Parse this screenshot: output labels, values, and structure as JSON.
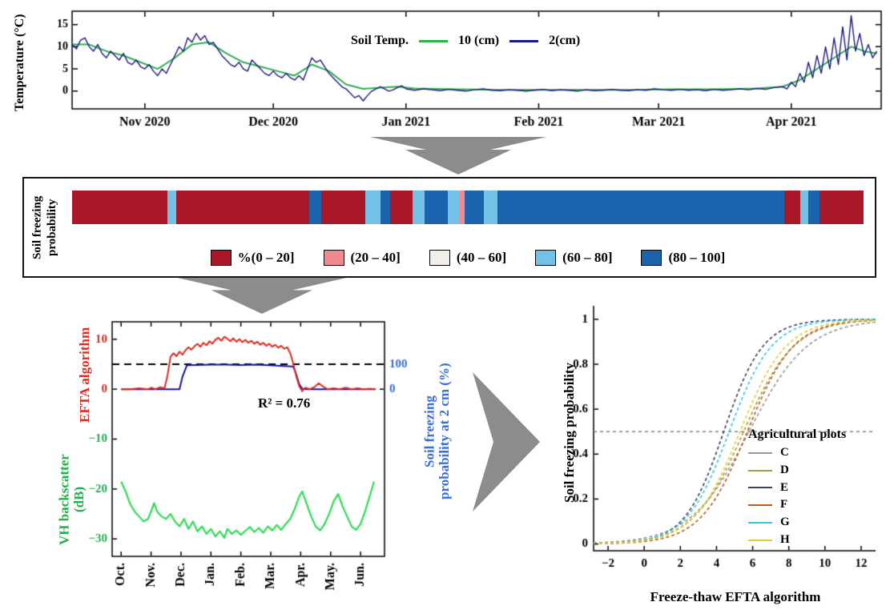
{
  "style": {
    "arrow_color": "#8c8c8c"
  },
  "chart_data": [
    {
      "id": "soil_temperature",
      "type": "line",
      "ylabel": "Temperature (°C)",
      "legend_title": "Soil Temp.",
      "xlim": [
        0,
        189
      ],
      "ylim": [
        -4,
        18
      ],
      "yticks": [
        0,
        5,
        10,
        15
      ],
      "xticks": [
        {
          "pos": 17,
          "label": "Nov 2020"
        },
        {
          "pos": 47,
          "label": "Dec 2020"
        },
        {
          "pos": 78,
          "label": "Jan 2021"
        },
        {
          "pos": 109,
          "label": "Feb 2021"
        },
        {
          "pos": 137,
          "label": "Mar 2021"
        },
        {
          "pos": 168,
          "label": "Apr 2021"
        }
      ],
      "series": [
        {
          "name": "10 (cm)",
          "color": "#2eb050",
          "width": 2,
          "x": [
            0,
            4,
            8,
            12,
            16,
            20,
            24,
            28,
            32,
            36,
            40,
            44,
            48,
            52,
            56,
            60,
            64,
            68,
            72,
            76,
            80,
            90,
            100,
            110,
            120,
            130,
            140,
            150,
            160,
            166,
            170,
            174,
            178,
            182,
            185,
            188
          ],
          "y": [
            10.5,
            10.5,
            9,
            8,
            6.5,
            5,
            7.5,
            10.5,
            11,
            8.5,
            6.5,
            5.5,
            4.5,
            3.5,
            6,
            4.5,
            1.5,
            0.5,
            0.8,
            1,
            0.6,
            0.4,
            0.3,
            0.3,
            0.3,
            0.3,
            0.4,
            0.4,
            0.6,
            1,
            2.5,
            5,
            7.5,
            10,
            9,
            8.5
          ]
        },
        {
          "name": "2(cm)",
          "color": "#1a1a80",
          "width": 1.4,
          "x": [
            0,
            1,
            2,
            3,
            4,
            5,
            6,
            7,
            8,
            9,
            10,
            11,
            12,
            13,
            14,
            15,
            16,
            17,
            18,
            19,
            20,
            21,
            22,
            23,
            24,
            25,
            26,
            27,
            28,
            29,
            30,
            31,
            32,
            33,
            34,
            35,
            36,
            37,
            38,
            39,
            40,
            41,
            42,
            43,
            44,
            45,
            46,
            47,
            48,
            49,
            50,
            51,
            52,
            53,
            54,
            55,
            56,
            57,
            58,
            59,
            60,
            61,
            62,
            63,
            64,
            65,
            66,
            67,
            68,
            69,
            70,
            71,
            72,
            73,
            74,
            75,
            76,
            77,
            78,
            80,
            82,
            84,
            86,
            88,
            90,
            92,
            94,
            96,
            98,
            100,
            102,
            104,
            106,
            108,
            110,
            112,
            114,
            116,
            118,
            120,
            122,
            124,
            126,
            128,
            130,
            132,
            134,
            136,
            138,
            140,
            142,
            144,
            146,
            148,
            150,
            152,
            154,
            156,
            158,
            160,
            162,
            164,
            166,
            167,
            168,
            169,
            170,
            171,
            172,
            173,
            174,
            175,
            176,
            177,
            178,
            179,
            180,
            181,
            182,
            183,
            184,
            185,
            186,
            187,
            188
          ],
          "y": [
            10.5,
            9.5,
            11.5,
            12,
            10,
            9,
            10.5,
            8.5,
            7.5,
            9,
            8,
            7,
            8.5,
            6.5,
            6,
            7,
            5.5,
            5,
            6,
            4.5,
            3.5,
            5,
            4,
            6,
            8,
            10,
            9,
            12,
            11,
            13,
            11.5,
            12.5,
            10.5,
            11,
            9.5,
            8,
            7,
            6,
            5.5,
            6.5,
            5,
            4.5,
            7,
            6,
            5,
            4,
            3.5,
            4.5,
            3.5,
            3,
            4,
            3,
            2.5,
            3.5,
            2.5,
            5,
            7.5,
            6.5,
            7,
            5.5,
            4,
            3,
            2,
            1,
            0.5,
            -0.5,
            -1.5,
            -1,
            -2.2,
            -1,
            0,
            0.5,
            1,
            0.5,
            0,
            0.3,
            0.8,
            1.2,
            0.5,
            0.2,
            0.5,
            0.3,
            0.1,
            0.4,
            0.2,
            0,
            0.3,
            0.5,
            0.2,
            0.1,
            0.3,
            0.2,
            0,
            0.2,
            0.4,
            0.1,
            0.3,
            0.2,
            0,
            0.3,
            0.1,
            0.2,
            0.4,
            0.2,
            0.1,
            0.3,
            0.2,
            0.5,
            0.3,
            0.2,
            0.4,
            0.2,
            0.3,
            0.1,
            0.4,
            0.2,
            0.3,
            0.5,
            0.3,
            0.6,
            0.4,
            0.8,
            1,
            0.5,
            2,
            1,
            4,
            2,
            6.5,
            3,
            8,
            4,
            10,
            5,
            12,
            6,
            14.5,
            7,
            17,
            9,
            13,
            8,
            10.5,
            7.5,
            9
          ]
        }
      ]
    },
    {
      "id": "soil_freezing_probability_bar",
      "type": "bar",
      "ylabel": "Soil freezing\nprobability",
      "categories": [
        {
          "label": "%(0 – 20]",
          "color": "#a81828"
        },
        {
          "label": "(20 – 40]",
          "color": "#f08a8e"
        },
        {
          "label": "(40 – 60]",
          "color": "#f2efeb"
        },
        {
          "label": "(60 – 80]",
          "color": "#74c1e8"
        },
        {
          "label": "(80 – 100]",
          "color": "#1c63ad"
        }
      ],
      "segments": [
        {
          "cat": 0,
          "w": 12.0
        },
        {
          "cat": 3,
          "w": 1.2
        },
        {
          "cat": 0,
          "w": 16.8
        },
        {
          "cat": 4,
          "w": 1.5
        },
        {
          "cat": 0,
          "w": 5.5
        },
        {
          "cat": 3,
          "w": 2.0
        },
        {
          "cat": 4,
          "w": 1.2
        },
        {
          "cat": 0,
          "w": 2.8
        },
        {
          "cat": 3,
          "w": 1.5
        },
        {
          "cat": 4,
          "w": 3.0
        },
        {
          "cat": 3,
          "w": 1.5
        },
        {
          "cat": 1,
          "w": 0.6
        },
        {
          "cat": 4,
          "w": 2.4
        },
        {
          "cat": 3,
          "w": 1.8
        },
        {
          "cat": 4,
          "w": 36.2
        },
        {
          "cat": 0,
          "w": 2.0
        },
        {
          "cat": 3,
          "w": 1.0
        },
        {
          "cat": 4,
          "w": 1.5
        },
        {
          "cat": 0,
          "w": 5.5
        }
      ]
    },
    {
      "id": "efta_timeseries",
      "type": "line",
      "labels": {
        "efta": "EFTA algorithm",
        "vh": "VH backscatter\n(dB)",
        "right": "Soil freezing\nprobability at 2 cm (%)",
        "r2": "R² = 0.76"
      },
      "xlim": [
        -0.3,
        8.8
      ],
      "ylim": [
        -33.5,
        13.5
      ],
      "dashed_line_y": 5,
      "left_ticks": [
        {
          "v": 10,
          "label": "10",
          "color": "#e02b20"
        },
        {
          "v": 0,
          "label": "0",
          "color": "#e02b20"
        },
        {
          "v": -10,
          "label": "−10",
          "color": "#22b14c"
        },
        {
          "v": -20,
          "label": "−20",
          "color": "#22b14c"
        },
        {
          "v": -30,
          "label": "−30",
          "color": "#22b14c"
        }
      ],
      "right_axis": {
        "color": "#3a6fd8",
        "ticks": [
          {
            "v": 5,
            "label": "100"
          },
          {
            "v": 0,
            "label": "0"
          }
        ]
      },
      "xticks": [
        {
          "pos": 0,
          "label": "Oct."
        },
        {
          "pos": 1,
          "label": "Nov."
        },
        {
          "pos": 2,
          "label": "Dec."
        },
        {
          "pos": 3,
          "label": "Jan."
        },
        {
          "pos": 4,
          "label": "Feb."
        },
        {
          "pos": 5,
          "label": "Mar."
        },
        {
          "pos": 6,
          "label": "Apr."
        },
        {
          "pos": 7,
          "label": "May."
        },
        {
          "pos": 8,
          "label": "Jun."
        }
      ],
      "series": [
        {
          "name": "EFTA algorithm",
          "color": "#e02b20",
          "width": 2,
          "axis": "left",
          "x": [
            0,
            0.3,
            0.6,
            0.9,
            1.0,
            1.15,
            1.3,
            1.45,
            1.55,
            1.65,
            1.75,
            1.85,
            1.95,
            2.05,
            2.15,
            2.25,
            2.35,
            2.45,
            2.55,
            2.65,
            2.75,
            2.85,
            2.95,
            3.05,
            3.15,
            3.25,
            3.35,
            3.45,
            3.55,
            3.65,
            3.75,
            3.85,
            3.95,
            4.05,
            4.15,
            4.25,
            4.35,
            4.45,
            4.55,
            4.65,
            4.75,
            4.85,
            4.95,
            5.05,
            5.15,
            5.25,
            5.35,
            5.45,
            5.55,
            5.65,
            5.75,
            5.85,
            5.95,
            6.05,
            6.15,
            6.3,
            6.45,
            6.6,
            6.75,
            6.9,
            7.1,
            7.3,
            7.5,
            7.7,
            7.9,
            8.1,
            8.3,
            8.5
          ],
          "y": [
            0,
            0,
            0.2,
            0,
            0.3,
            0,
            0.4,
            0.2,
            2.8,
            6.5,
            7.2,
            6.6,
            7.5,
            6.9,
            7.8,
            8.4,
            7.9,
            8.6,
            9.1,
            8.5,
            9.3,
            8.8,
            9.6,
            9.1,
            9.9,
            10.3,
            9.7,
            10.5,
            10.1,
            9.6,
            10.2,
            9.5,
            10,
            9.4,
            9.9,
            9.3,
            9.7,
            9.1,
            9.5,
            8.9,
            9.3,
            8.7,
            9.1,
            8.5,
            8.9,
            8.3,
            8.7,
            8.1,
            8.4,
            7.2,
            5.2,
            2.6,
            0.6,
            -0.4,
            0.3,
            0,
            0.4,
            1.2,
            0.5,
            0,
            0.2,
            0,
            0.3,
            0,
            0.2,
            0,
            0.1,
            0
          ]
        },
        {
          "name": "Soil freezing probability at 2 cm (%)",
          "color": "#1414a0",
          "width": 2,
          "axis": "right",
          "x": [
            0,
            0.5,
            1.0,
            1.5,
            1.8,
            1.95,
            2.05,
            2.2,
            2.5,
            3.0,
            3.5,
            4.0,
            4.5,
            4.8,
            5.1,
            5.4,
            5.6,
            5.75,
            5.85,
            5.95,
            6.05,
            6.2,
            6.5,
            7.0,
            7.5,
            8.0,
            8.5
          ],
          "y": [
            0,
            0,
            0,
            0,
            0,
            0,
            50,
            96,
            97,
            98,
            98,
            97,
            98,
            97,
            95,
            93,
            92,
            90,
            60,
            20,
            2,
            0,
            0,
            0,
            0,
            0,
            0
          ]
        },
        {
          "name": "VH backscatter (dB)",
          "color": "#2ede52",
          "width": 2.2,
          "axis": "left",
          "x": [
            0,
            0.15,
            0.3,
            0.45,
            0.6,
            0.75,
            0.9,
            1.0,
            1.1,
            1.2,
            1.35,
            1.5,
            1.65,
            1.8,
            1.95,
            2.1,
            2.25,
            2.4,
            2.55,
            2.7,
            2.85,
            3.0,
            3.15,
            3.3,
            3.45,
            3.55,
            3.7,
            3.85,
            4.0,
            4.15,
            4.3,
            4.45,
            4.6,
            4.75,
            4.9,
            5.05,
            5.2,
            5.35,
            5.5,
            5.65,
            5.8,
            5.95,
            6.05,
            6.2,
            6.35,
            6.5,
            6.65,
            6.8,
            6.95,
            7.1,
            7.25,
            7.4,
            7.55,
            7.7,
            7.85,
            8.0,
            8.15,
            8.3,
            8.45
          ],
          "y": [
            -18.5,
            -20.5,
            -23,
            -24.5,
            -25.5,
            -26.5,
            -26,
            -24.5,
            -22.8,
            -24.5,
            -25.5,
            -26,
            -25,
            -26.5,
            -27.5,
            -26,
            -28,
            -26.5,
            -28.5,
            -27.5,
            -29,
            -28,
            -29.5,
            -28.5,
            -29.8,
            -28,
            -29,
            -28.3,
            -29.2,
            -28.4,
            -27.6,
            -28.6,
            -27.8,
            -28.8,
            -27.5,
            -28.3,
            -27.2,
            -28.2,
            -27,
            -26,
            -24,
            -21.5,
            -20.5,
            -23,
            -25.5,
            -27.5,
            -28.3,
            -27,
            -25,
            -22.5,
            -21,
            -23.5,
            -25.5,
            -27.5,
            -28.2,
            -27,
            -24.5,
            -21.5,
            -18.5
          ]
        }
      ]
    },
    {
      "id": "freezing_probability_sigmoids",
      "type": "line",
      "xlabel": "Freeze-thaw EFTA algorithm",
      "ylabel": "Soil freezing probability",
      "legend_title": "Agricultural plots",
      "xlim": [
        -2.8,
        12.8
      ],
      "ylim": [
        -0.03,
        1.06
      ],
      "xticks": [
        -2,
        0,
        2,
        4,
        6,
        8,
        10,
        12
      ],
      "yticks": [
        0,
        0.2,
        0.4,
        0.6,
        0.8,
        1
      ],
      "hline": 0.5,
      "curve_model": "logistic y = 1/(1+exp(-k(x-x0)))",
      "series": [
        {
          "name": "C",
          "color": "#999999",
          "x0": 5.8,
          "k": 0.62
        },
        {
          "name": "D",
          "color": "#a0a23c",
          "x0": 5.5,
          "k": 0.72
        },
        {
          "name": "E",
          "color": "#39465a",
          "x0": 4.4,
          "k": 0.92
        },
        {
          "name": "F",
          "color": "#bf5b21",
          "x0": 5.7,
          "k": 0.78
        },
        {
          "name": "G",
          "color": "#38c6e8",
          "x0": 4.7,
          "k": 0.85
        },
        {
          "name": "H",
          "color": "#e8cb2e",
          "x0": 5.3,
          "k": 0.78
        }
      ]
    }
  ]
}
